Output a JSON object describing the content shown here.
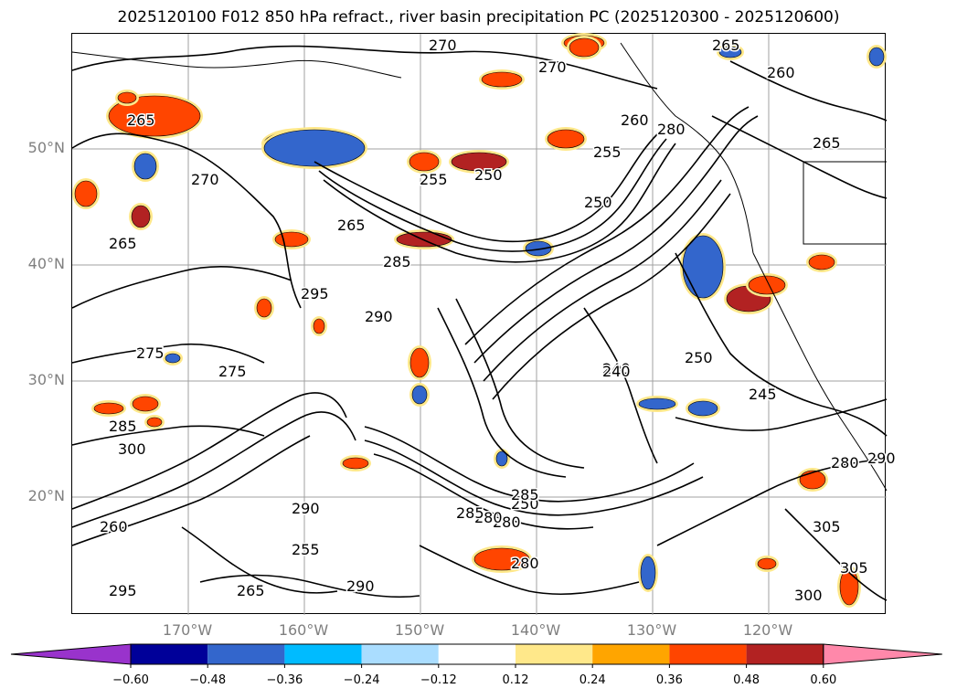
{
  "title": "2025120100 F012 850 hPa refract., river basin precipitation PC (2025120300 - 2025120600)",
  "map": {
    "lat_labels": [
      {
        "label": "50°N",
        "lat": 50
      },
      {
        "label": "40°N",
        "lat": 40
      },
      {
        "label": "30°N",
        "lat": 30
      },
      {
        "label": "20°N",
        "lat": 20
      }
    ],
    "lon_labels": [
      {
        "label": "170°W",
        "lon": -170
      },
      {
        "label": "160°W",
        "lon": -160
      },
      {
        "label": "150°W",
        "lon": -150
      },
      {
        "label": "140°W",
        "lon": -140
      },
      {
        "label": "130°W",
        "lon": -130
      },
      {
        "label": "120°W",
        "lon": -120
      }
    ],
    "contour_labels": [
      {
        "text": "270"
      },
      {
        "text": "270"
      },
      {
        "text": "265"
      },
      {
        "text": "260"
      },
      {
        "text": "255"
      },
      {
        "text": "250"
      },
      {
        "text": "255"
      },
      {
        "text": "260"
      },
      {
        "text": "280"
      },
      {
        "text": "265"
      },
      {
        "text": "285"
      },
      {
        "text": "265"
      },
      {
        "text": "265"
      },
      {
        "text": "295"
      },
      {
        "text": "290"
      },
      {
        "text": "275"
      },
      {
        "text": "275"
      },
      {
        "text": "285"
      },
      {
        "text": "300"
      },
      {
        "text": "250"
      },
      {
        "text": "250"
      },
      {
        "text": "240"
      },
      {
        "text": "245"
      },
      {
        "text": "290"
      },
      {
        "text": "260"
      },
      {
        "text": "250"
      },
      {
        "text": "280"
      },
      {
        "text": "305"
      },
      {
        "text": "305"
      },
      {
        "text": "300"
      },
      {
        "text": "290"
      },
      {
        "text": "280"
      },
      {
        "text": "285"
      },
      {
        "text": "290"
      },
      {
        "text": "265"
      },
      {
        "text": "255"
      },
      {
        "text": "280"
      },
      {
        "text": "285"
      },
      {
        "text": "280"
      },
      {
        "text": "295"
      },
      {
        "text": "265"
      },
      {
        "text": "270"
      },
      {
        "text": "240"
      }
    ]
  },
  "colorbar": {
    "colors": [
      "#9933cc",
      "#000099",
      "#3366cc",
      "#00bbff",
      "#aaddff",
      "#ffffff",
      "#ffe88a",
      "#ffa500",
      "#ff4500",
      "#b22222",
      "#ff88aa"
    ],
    "ticks": [
      "−0.60",
      "−0.48",
      "−0.36",
      "−0.24",
      "−0.12",
      "0.12",
      "0.24",
      "0.36",
      "0.48",
      "0.60"
    ]
  }
}
